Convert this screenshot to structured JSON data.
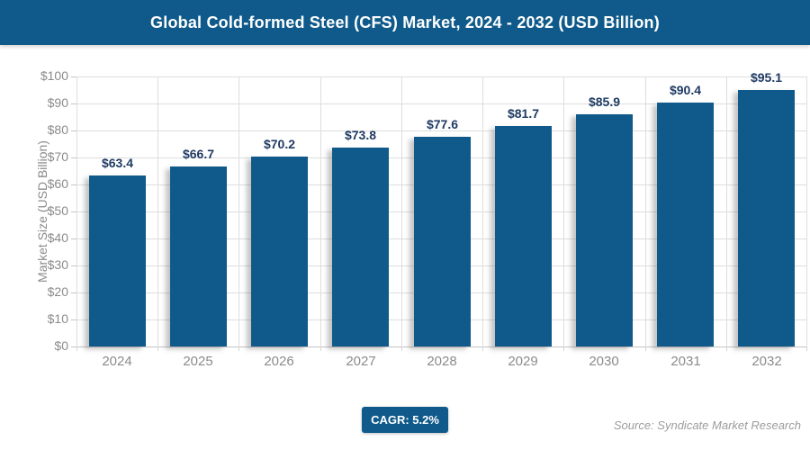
{
  "header": {
    "title": "Global Cold-formed Steel (CFS) Market, 2024 - 2032 (USD Billion)"
  },
  "chart_data": {
    "type": "bar",
    "title": "Global Cold-formed Steel (CFS) Market, 2024 - 2032 (USD Billion)",
    "categories": [
      "2024",
      "2025",
      "2026",
      "2027",
      "2028",
      "2029",
      "2030",
      "2031",
      "2032"
    ],
    "values": [
      63.4,
      66.7,
      70.2,
      73.8,
      77.6,
      81.7,
      85.9,
      90.4,
      95.1
    ],
    "data_labels": [
      "$63.4",
      "$66.7",
      "$70.2",
      "$73.8",
      "$77.6",
      "$81.7",
      "$85.9",
      "$90.4",
      "$95.1"
    ],
    "xlabel": "",
    "ylabel": "Market Size (USD Billion)",
    "ylim": [
      0,
      100
    ],
    "ytick_step": 10,
    "ytick_labels": [
      "$0",
      "$10",
      "$20",
      "$30",
      "$40",
      "$50",
      "$60",
      "$70",
      "$80",
      "$90",
      "$100"
    ],
    "grid": true,
    "legend_position": "none",
    "bar_color": "#0F5A8A",
    "value_label_color": "#1F3A63",
    "axis_text_color": "#8B8B8B"
  },
  "footer": {
    "cagr_label": "CAGR: 5.2%",
    "source": "Source: Syndicate Market Research"
  },
  "colors": {
    "brand": "#0F5A8A",
    "gridline": "#DDDDDD",
    "axis_line": "#C4C4C4"
  }
}
